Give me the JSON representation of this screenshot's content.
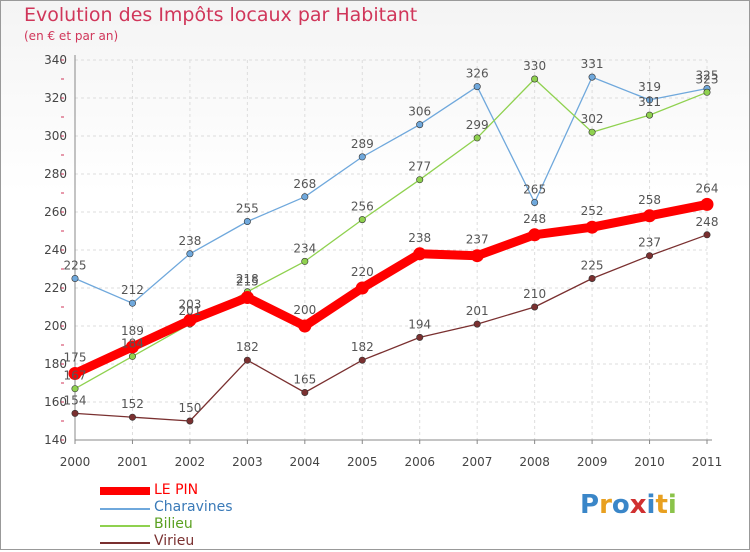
{
  "title": "Evolution des Impôts locaux par Habitant",
  "subtitle": "(en € et par an)",
  "logo": {
    "text": "Proxiti",
    "colors": [
      "#3a86c8",
      "#e8a020",
      "#3a86c8",
      "#d03030",
      "#3a86c8",
      "#e8a020",
      "#8bc34a"
    ]
  },
  "chart_data": {
    "type": "line",
    "title": "Evolution des Impôts locaux par Habitant",
    "subtitle": "(en € et par an)",
    "x": [
      "2000",
      "2001",
      "2002",
      "2003",
      "2004",
      "2005",
      "2006",
      "2007",
      "2008",
      "2009",
      "2010",
      "2011"
    ],
    "ylim": [
      140,
      340
    ],
    "yticks": [
      140,
      160,
      180,
      200,
      220,
      240,
      260,
      280,
      300,
      320,
      340
    ],
    "grid": true,
    "legend_position": "bottom-left",
    "series": [
      {
        "name": "LE PIN",
        "color": "#ff0000",
        "values": [
          175,
          189,
          203,
          215,
          200,
          220,
          238,
          237,
          248,
          252,
          258,
          264
        ]
      },
      {
        "name": "Charavines",
        "color": "#6fa8dc",
        "values": [
          225,
          212,
          238,
          255,
          268,
          289,
          306,
          326,
          265,
          331,
          319,
          325
        ]
      },
      {
        "name": "Bilieu",
        "color": "#8fd14f",
        "values": [
          167,
          184,
          201,
          218,
          234,
          256,
          277,
          299,
          330,
          302,
          311,
          323
        ]
      },
      {
        "name": "Virieu",
        "color": "#7a3030",
        "values": [
          154,
          152,
          150,
          182,
          165,
          182,
          194,
          201,
          210,
          225,
          237,
          248
        ]
      }
    ]
  }
}
